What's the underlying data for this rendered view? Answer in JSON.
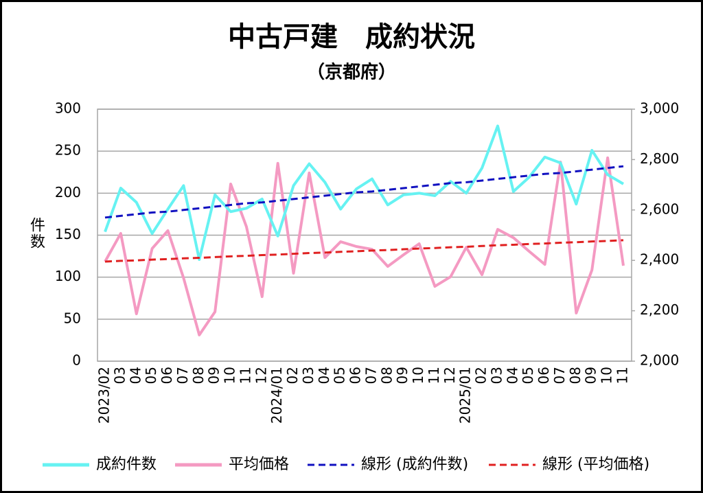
{
  "chart_data": {
    "type": "line",
    "title": "中古戸建　成約状況",
    "subtitle": "（京都府）",
    "y_label": "件数",
    "categories": [
      "2023/02",
      "03",
      "04",
      "05",
      "06",
      "07",
      "08",
      "09",
      "10",
      "11",
      "12",
      "2024/01",
      "02",
      "03",
      "04",
      "05",
      "06",
      "07",
      "08",
      "09",
      "10",
      "11",
      "12",
      "2025/01",
      "02",
      "03",
      "04",
      "05",
      "06",
      "07",
      "08",
      "09",
      "10",
      "11"
    ],
    "series": [
      {
        "name": "成約件数",
        "color": "#66f2f2",
        "axis": "y",
        "values": [
          154,
          206,
          189,
          152,
          181,
          209,
          121,
          198,
          178,
          182,
          193,
          149,
          209,
          235,
          213,
          181,
          205,
          217,
          186,
          198,
          200,
          197,
          214,
          200,
          230,
          280,
          202,
          219,
          243,
          236,
          187,
          251,
          222,
          211
        ]
      },
      {
        "name": "平均価格",
        "color": "#f49ac2",
        "axis": "y2",
        "values": [
          2395,
          2507,
          2188,
          2447,
          2518,
          2330,
          2104,
          2196,
          2703,
          2534,
          2256,
          2785,
          2349,
          2747,
          2411,
          2474,
          2455,
          2444,
          2376,
          2422,
          2466,
          2297,
          2335,
          2452,
          2343,
          2523,
          2490,
          2436,
          2384,
          2790,
          2191,
          2362,
          2807,
          2379
        ]
      },
      {
        "name": "線形 (成約件数)",
        "color": "#1010c0",
        "axis": "y",
        "dashed": true,
        "values": [
          171,
          173,
          175,
          177,
          178,
          180,
          182,
          184,
          186,
          188,
          189,
          191,
          193,
          195,
          197,
          199,
          201,
          202,
          204,
          206,
          208,
          210,
          212,
          213,
          215,
          217,
          219,
          221,
          223,
          224,
          226,
          228,
          230,
          232
        ]
      },
      {
        "name": "線形 (平均価格)",
        "color": "#e02020",
        "axis": "y2",
        "dashed": true,
        "values": [
          2395,
          2398,
          2400,
          2403,
          2405,
          2408,
          2410,
          2413,
          2416,
          2418,
          2421,
          2423,
          2426,
          2429,
          2431,
          2434,
          2436,
          2439,
          2441,
          2444,
          2447,
          2449,
          2452,
          2454,
          2457,
          2460,
          2462,
          2465,
          2467,
          2470,
          2472,
          2475,
          2477,
          2480
        ]
      }
    ],
    "ylim": [
      0,
      300
    ],
    "yticks": [
      0,
      50,
      100,
      150,
      200,
      250,
      300
    ],
    "y2lim": [
      2000,
      3000
    ],
    "y2ticks": [
      {
        "value": 2000,
        "label": "2,000"
      },
      {
        "value": 2200,
        "label": "2,200"
      },
      {
        "value": 2400,
        "label": "2,400"
      },
      {
        "value": 2600,
        "label": "2,600"
      },
      {
        "value": 2800,
        "label": "2,800"
      },
      {
        "value": 3000,
        "label": "3,000"
      }
    ],
    "grid": true,
    "legend": "bottom"
  }
}
